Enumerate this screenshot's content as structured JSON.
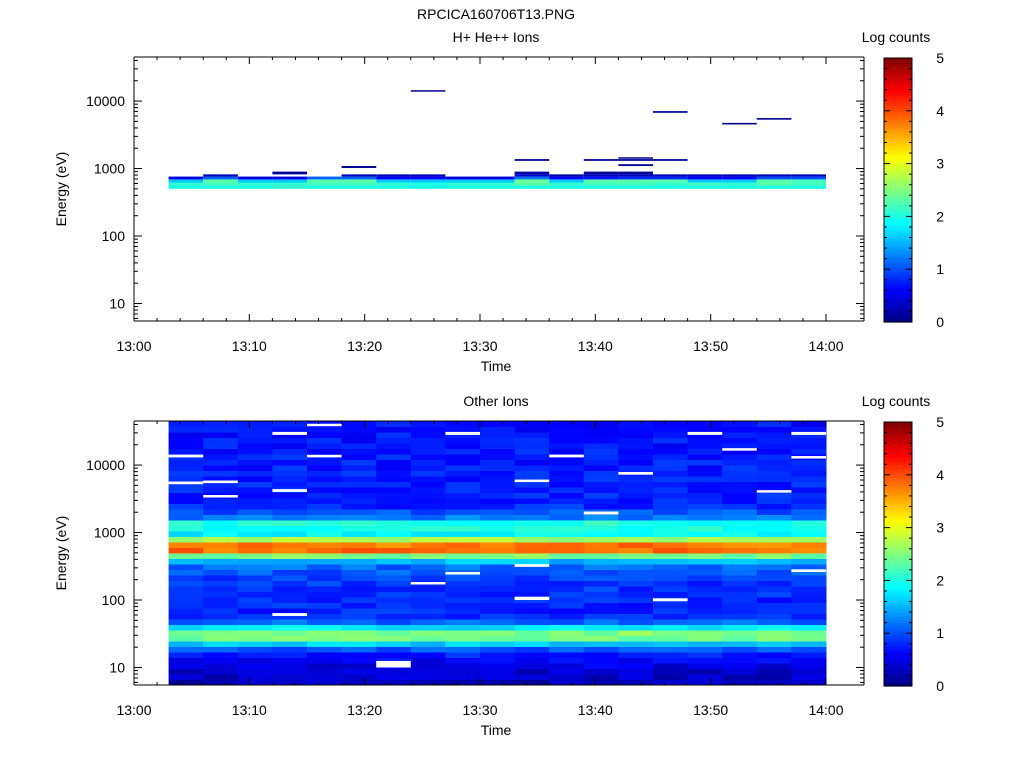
{
  "figure_title": "RPCICA160706T13.PNG",
  "chart_data": [
    {
      "type": "heatmap",
      "title": "H+ He++ Ions",
      "xlabel": "Time",
      "ylabel": "Energy (eV)",
      "x_ticks": [
        "13:00",
        "13:10",
        "13:20",
        "13:30",
        "13:40",
        "13:50",
        "14:00"
      ],
      "y_scale": "log",
      "y_ticks": [
        "10",
        "100",
        "1000",
        "10000"
      ],
      "ylim": [
        5.5,
        45000
      ],
      "colorbar": {
        "label": "Log counts",
        "range": [
          0,
          5
        ],
        "ticks": [
          "0",
          "1",
          "2",
          "3",
          "4",
          "5"
        ],
        "colormap": "jet"
      },
      "time_bins": [
        "13:03",
        "13:06",
        "13:09",
        "13:12",
        "13:15",
        "13:18",
        "13:21",
        "13:24",
        "13:27",
        "13:30",
        "13:33",
        "13:36",
        "13:39",
        "13:42",
        "13:45",
        "13:48",
        "13:51",
        "13:54",
        "13:57"
      ],
      "rows": [
        {
          "e_lo": 500,
          "e_hi": 560,
          "values": [
            2.0,
            2.0,
            2.0,
            2.1,
            2.0,
            2.0,
            2.0,
            2.0,
            2.0,
            2.0,
            2.0,
            2.0,
            2.0,
            2.0,
            2.0,
            2.0,
            2.0,
            2.0,
            2.0
          ]
        },
        {
          "e_lo": 560,
          "e_hi": 620,
          "values": [
            2.1,
            2.2,
            2.1,
            2.1,
            2.2,
            2.2,
            2.1,
            2.0,
            2.1,
            2.1,
            2.3,
            2.1,
            2.2,
            2.2,
            2.1,
            2.2,
            2.1,
            2.3,
            2.2
          ]
        },
        {
          "e_lo": 620,
          "e_hi": 690,
          "values": [
            1.6,
            2.3,
            1.6,
            1.6,
            2.3,
            2.3,
            1.6,
            1.6,
            1.6,
            1.6,
            2.4,
            1.6,
            2.3,
            2.3,
            2.3,
            1.6,
            1.6,
            2.3,
            2.2
          ]
        },
        {
          "e_lo": 690,
          "e_hi": 760,
          "values": [
            0.5,
            1.1,
            0.5,
            0.5,
            1.1,
            1.1,
            0.6,
            0.6,
            0.5,
            0.5,
            1.2,
            0.6,
            0.7,
            0.8,
            0.8,
            0.6,
            0.6,
            1.0,
            1.0
          ]
        },
        {
          "e_lo": 760,
          "e_hi": 820,
          "values": [
            null,
            0.3,
            null,
            null,
            null,
            0.3,
            0.3,
            0.3,
            null,
            null,
            0.4,
            0.2,
            0.3,
            0.3,
            0.3,
            0.3,
            0.3,
            0.3,
            0.3
          ]
        },
        {
          "e_lo": 820,
          "e_hi": 900,
          "values": [
            null,
            null,
            null,
            0.1,
            null,
            null,
            null,
            null,
            null,
            null,
            0.2,
            null,
            0.1,
            0.1,
            null,
            null,
            null,
            null,
            null
          ]
        },
        {
          "e_lo": 1020,
          "e_hi": 1090,
          "values": [
            null,
            null,
            null,
            null,
            null,
            0.1,
            null,
            null,
            null,
            null,
            null,
            null,
            null,
            null,
            null,
            null,
            null,
            null,
            null
          ]
        },
        {
          "e_lo": 1090,
          "e_hi": 1160,
          "values": [
            null,
            null,
            null,
            null,
            null,
            null,
            null,
            null,
            null,
            null,
            null,
            null,
            null,
            0.1,
            null,
            null,
            null,
            null,
            null
          ]
        },
        {
          "e_lo": 1300,
          "e_hi": 1380,
          "values": [
            null,
            null,
            null,
            null,
            null,
            null,
            null,
            null,
            null,
            null,
            0.1,
            null,
            0.1,
            0.1,
            0.1,
            null,
            null,
            null,
            null
          ]
        },
        {
          "e_lo": 1400,
          "e_hi": 1470,
          "values": [
            null,
            null,
            null,
            null,
            null,
            null,
            null,
            null,
            null,
            null,
            null,
            null,
            null,
            0.1,
            null,
            null,
            null,
            null,
            null
          ]
        },
        {
          "e_lo": 4500,
          "e_hi": 4750,
          "values": [
            null,
            null,
            null,
            null,
            null,
            null,
            null,
            null,
            null,
            null,
            null,
            null,
            null,
            null,
            null,
            null,
            0.1,
            null,
            null
          ]
        },
        {
          "e_lo": 5300,
          "e_hi": 5600,
          "values": [
            null,
            null,
            null,
            null,
            null,
            null,
            null,
            null,
            null,
            null,
            null,
            null,
            null,
            null,
            null,
            null,
            null,
            0.1,
            null
          ]
        },
        {
          "e_lo": 6700,
          "e_hi": 7100,
          "values": [
            null,
            null,
            null,
            null,
            null,
            null,
            null,
            null,
            null,
            null,
            null,
            null,
            null,
            null,
            0.1,
            null,
            null,
            null,
            null
          ]
        },
        {
          "e_lo": 13800,
          "e_hi": 14500,
          "values": [
            null,
            null,
            null,
            null,
            null,
            null,
            null,
            0.1,
            null,
            null,
            null,
            null,
            null,
            null,
            null,
            null,
            null,
            null,
            null
          ]
        }
      ]
    },
    {
      "type": "heatmap",
      "title": "Other Ions",
      "xlabel": "Time",
      "ylabel": "Energy (eV)",
      "x_ticks": [
        "13:00",
        "13:10",
        "13:20",
        "13:30",
        "13:40",
        "13:50",
        "14:00"
      ],
      "y_scale": "log",
      "y_ticks": [
        "10",
        "100",
        "1000",
        "10000"
      ],
      "ylim": [
        5.5,
        45000
      ],
      "colorbar": {
        "label": "Log counts",
        "range": [
          0,
          5
        ],
        "ticks": [
          "0",
          "1",
          "2",
          "3",
          "4",
          "5"
        ],
        "colormap": "jet"
      },
      "time_bins": [
        "13:03",
        "13:06",
        "13:09",
        "13:12",
        "13:15",
        "13:18",
        "13:21",
        "13:24",
        "13:27",
        "13:30",
        "13:33",
        "13:36",
        "13:39",
        "13:42",
        "13:45",
        "13:48",
        "13:51",
        "13:54",
        "13:57"
      ],
      "energy_range_ev": [
        5.5,
        45000
      ],
      "profile": [
        {
          "e": 6,
          "v": 0.3
        },
        {
          "e": 9,
          "v": 0.4
        },
        {
          "e": 13,
          "v": 0.6
        },
        {
          "e": 18,
          "v": 0.9
        },
        {
          "e": 22,
          "v": 1.5
        },
        {
          "e": 26,
          "v": 2.3
        },
        {
          "e": 30,
          "v": 2.8
        },
        {
          "e": 36,
          "v": 2.2
        },
        {
          "e": 45,
          "v": 1.2
        },
        {
          "e": 60,
          "v": 0.8
        },
        {
          "e": 100,
          "v": 0.8
        },
        {
          "e": 200,
          "v": 0.9
        },
        {
          "e": 350,
          "v": 1.2
        },
        {
          "e": 450,
          "v": 2.4
        },
        {
          "e": 520,
          "v": 3.8
        },
        {
          "e": 620,
          "v": 4.0
        },
        {
          "e": 720,
          "v": 3.5
        },
        {
          "e": 850,
          "v": 2.2
        },
        {
          "e": 1000,
          "v": 1.7
        },
        {
          "e": 1150,
          "v": 2.0
        },
        {
          "e": 1350,
          "v": 2.2
        },
        {
          "e": 1600,
          "v": 1.3
        },
        {
          "e": 2500,
          "v": 0.8
        },
        {
          "e": 10000,
          "v": 0.75
        },
        {
          "e": 45000,
          "v": 0.7
        }
      ],
      "blank_cells": [
        {
          "time": "13:03",
          "e_lo": 13000,
          "e_hi": 14300
        },
        {
          "time": "13:03",
          "e_lo": 5200,
          "e_hi": 5700
        },
        {
          "time": "13:06",
          "e_lo": 3300,
          "e_hi": 3600
        },
        {
          "time": "13:06",
          "e_lo": 5400,
          "e_hi": 5900
        },
        {
          "time": "13:12",
          "e_lo": 28000,
          "e_hi": 31000
        },
        {
          "time": "13:12",
          "e_lo": 4000,
          "e_hi": 4400
        },
        {
          "time": "13:12",
          "e_lo": 58,
          "e_hi": 64
        },
        {
          "time": "13:15",
          "e_lo": 38000,
          "e_hi": 41000
        },
        {
          "time": "13:15",
          "e_lo": 13000,
          "e_hi": 14200
        },
        {
          "time": "13:21",
          "e_lo": 10,
          "e_hi": 12.5
        },
        {
          "time": "13:24",
          "e_lo": 170,
          "e_hi": 185
        },
        {
          "time": "13:27",
          "e_lo": 28000,
          "e_hi": 31000
        },
        {
          "time": "13:27",
          "e_lo": 240,
          "e_hi": 260
        },
        {
          "time": "13:33",
          "e_lo": 5600,
          "e_hi": 6100
        },
        {
          "time": "13:33",
          "e_lo": 100,
          "e_hi": 112
        },
        {
          "time": "13:33",
          "e_lo": 310,
          "e_hi": 340
        },
        {
          "time": "13:36",
          "e_lo": 13000,
          "e_hi": 14300
        },
        {
          "time": "13:39",
          "e_lo": 1850,
          "e_hi": 2050
        },
        {
          "time": "13:42",
          "e_lo": 7200,
          "e_hi": 7900
        },
        {
          "time": "13:45",
          "e_lo": 96,
          "e_hi": 106
        },
        {
          "time": "13:48",
          "e_lo": 28000,
          "e_hi": 31000
        },
        {
          "time": "13:51",
          "e_lo": 16500,
          "e_hi": 17800
        },
        {
          "time": "13:54",
          "e_lo": 3900,
          "e_hi": 4250
        },
        {
          "time": "13:57",
          "e_lo": 28000,
          "e_hi": 31000
        },
        {
          "time": "13:57",
          "e_lo": 12500,
          "e_hi": 13600
        },
        {
          "time": "13:57",
          "e_lo": 260,
          "e_hi": 285
        }
      ]
    }
  ]
}
